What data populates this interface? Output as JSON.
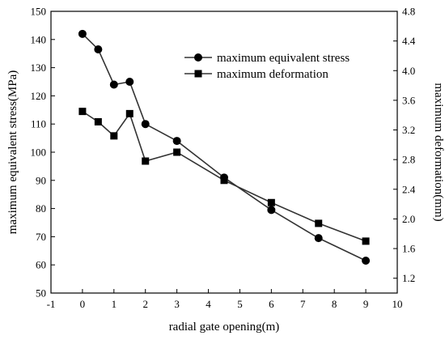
{
  "chart_data": {
    "type": "line",
    "xlabel": "radial gate opening(m)",
    "ylabel": "maximum equivalent stress(MPa)",
    "y2label": "maximum deformation(mm)",
    "xlim": [
      -1,
      10
    ],
    "ylim": [
      50,
      150
    ],
    "y2lim": [
      1.0,
      4.8
    ],
    "xticks": [
      "-1",
      "0",
      "1",
      "2",
      "3",
      "4",
      "5",
      "6",
      "7",
      "8",
      "9",
      "10"
    ],
    "yticks": [
      "50",
      "60",
      "70",
      "80",
      "90",
      "100",
      "110",
      "120",
      "130",
      "140",
      "150"
    ],
    "y2ticks": [
      "1.2",
      "1.6",
      "2.0",
      "2.4",
      "2.8",
      "3.2",
      "3.6",
      "4.0",
      "4.4",
      "4.8"
    ],
    "legend_position": "top-right",
    "grid": false,
    "series": [
      {
        "name": "maximum equivalent stress",
        "axis": "left",
        "marker": "circle",
        "x": [
          0,
          0.5,
          1,
          1.5,
          2,
          3,
          4.5,
          6,
          7.5,
          9
        ],
        "values": [
          142,
          136.5,
          124,
          125,
          110,
          104,
          91,
          79.5,
          69.5,
          61.5
        ]
      },
      {
        "name": "maximum deformation",
        "axis": "right",
        "marker": "square",
        "x": [
          0,
          0.5,
          1,
          1.5,
          2,
          3,
          4.5,
          6,
          7.5,
          9
        ],
        "values": [
          3.45,
          3.31,
          3.12,
          3.42,
          2.78,
          2.9,
          2.52,
          2.22,
          1.94,
          1.7
        ]
      }
    ]
  }
}
